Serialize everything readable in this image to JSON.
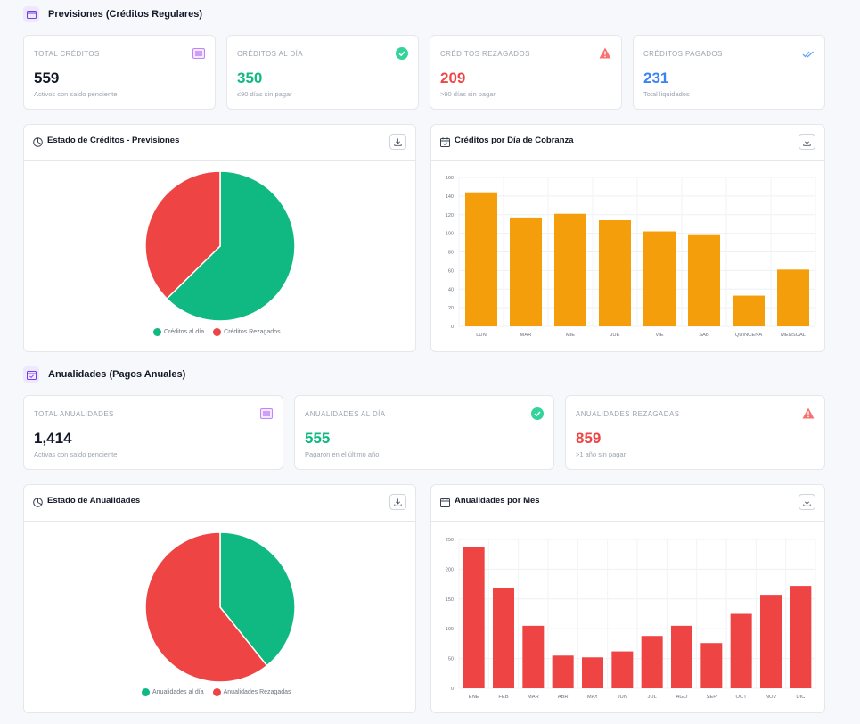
{
  "colors": {
    "green": "#10b981",
    "red": "#ef4444",
    "orange": "#f59e0b",
    "blue": "#3b82f6",
    "purple": "#a855f7",
    "dark": "#111827"
  },
  "previsiones": {
    "title": "Previsiones (Créditos Regulares)",
    "icon": "credit-card-icon",
    "stats": [
      {
        "label": "TOTAL CRÉDITOS",
        "value": "559",
        "sub": "Activos con saldo pendiente",
        "icon": "list-icon"
      },
      {
        "label": "CRÉDITOS AL DÍA",
        "value": "350",
        "sub": "≤90 días sin pagar",
        "icon": "check-circle-icon"
      },
      {
        "label": "CRÉDITOS REZAGADOS",
        "value": "209",
        "sub": ">90 días sin pagar",
        "icon": "warning-icon"
      },
      {
        "label": "CRÉDITOS PAGADOS",
        "value": "231",
        "sub": "Total liquidados",
        "icon": "double-check-icon"
      }
    ],
    "pie_title": "Estado de Créditos - Previsiones",
    "bar_title": "Créditos por Día de Cobranza"
  },
  "anualidades": {
    "title": "Anualidades (Pagos Anuales)",
    "icon": "calendar-check-icon",
    "stats": [
      {
        "label": "TOTAL ANUALIDADES",
        "value": "1,414",
        "sub": "Activas con saldo pendiente",
        "icon": "list-icon"
      },
      {
        "label": "ANUALIDADES AL DÍA",
        "value": "555",
        "sub": "Pagaron en el último año",
        "icon": "check-circle-icon"
      },
      {
        "label": "ANUALIDADES REZAGADAS",
        "value": "859",
        "sub": ">1 año sin pagar",
        "icon": "warning-icon"
      }
    ],
    "pie_title": "Estado de Anualidades",
    "bar_title": "Anualidades por Mes"
  },
  "chart_data": [
    {
      "type": "pie",
      "title": "Estado de Créditos - Previsiones",
      "categories": [
        "Créditos al día",
        "Créditos Rezagados"
      ],
      "values": [
        350,
        209
      ],
      "colors": [
        "#10b981",
        "#ef4444"
      ],
      "legend": "bottom"
    },
    {
      "type": "bar",
      "title": "Créditos por Día de Cobranza",
      "categories": [
        "LUN",
        "MAR",
        "MIE",
        "JUE",
        "VIE",
        "SAB",
        "QUINCENA",
        "MENSUAL"
      ],
      "values": [
        144,
        117,
        121,
        114,
        102,
        98,
        33,
        61
      ],
      "ylim": [
        0,
        160
      ],
      "yticks": [
        0,
        20,
        40,
        60,
        80,
        100,
        120,
        140,
        160
      ],
      "color": "#f59e0b",
      "grid": true
    },
    {
      "type": "pie",
      "title": "Estado de Anualidades",
      "categories": [
        "Anualidades al día",
        "Anualidades Rezagadas"
      ],
      "values": [
        555,
        859
      ],
      "colors": [
        "#10b981",
        "#ef4444"
      ],
      "legend": "bottom"
    },
    {
      "type": "bar",
      "title": "Anualidades por Mes",
      "categories": [
        "ENE",
        "FEB",
        "MAR",
        "ABR",
        "MAY",
        "JUN",
        "JUL",
        "AGO",
        "SEP",
        "OCT",
        "NOV",
        "DIC"
      ],
      "values": [
        238,
        168,
        105,
        55,
        52,
        62,
        88,
        105,
        76,
        125,
        157,
        172
      ],
      "ylim": [
        0,
        250
      ],
      "yticks": [
        0,
        50,
        100,
        150,
        200,
        250
      ],
      "color": "#ef4444",
      "grid": true
    }
  ]
}
